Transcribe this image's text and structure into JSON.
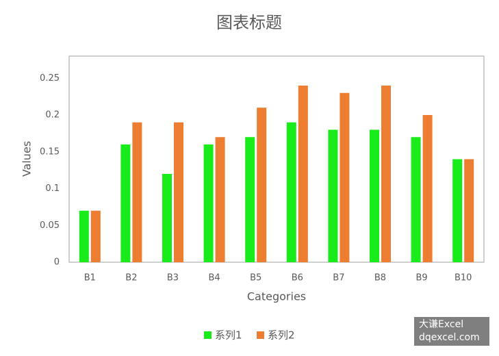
{
  "chart_data": {
    "type": "bar",
    "title": "图表标题",
    "x_label": "Categories",
    "y_label": "Values",
    "categories": [
      "B1",
      "B2",
      "B3",
      "B4",
      "B5",
      "B6",
      "B7",
      "B8",
      "B9",
      "B10"
    ],
    "series": [
      {
        "name": "系列1",
        "color": "#1aeb1a",
        "values": [
          0.07,
          0.16,
          0.12,
          0.16,
          0.17,
          0.19,
          0.18,
          0.18,
          0.17,
          0.14
        ]
      },
      {
        "name": "系列2",
        "color": "#ed7d31",
        "values": [
          0.07,
          0.19,
          0.19,
          0.17,
          0.21,
          0.24,
          0.23,
          0.24,
          0.2,
          0.14
        ]
      }
    ],
    "ylim": [
      0,
      0.28
    ],
    "yticks": [
      0,
      0.05,
      0.1,
      0.15,
      0.2,
      0.25
    ],
    "grid": false,
    "legend": "bottom",
    "watermark": [
      "大谦Excel",
      "dqexcel.com"
    ]
  }
}
